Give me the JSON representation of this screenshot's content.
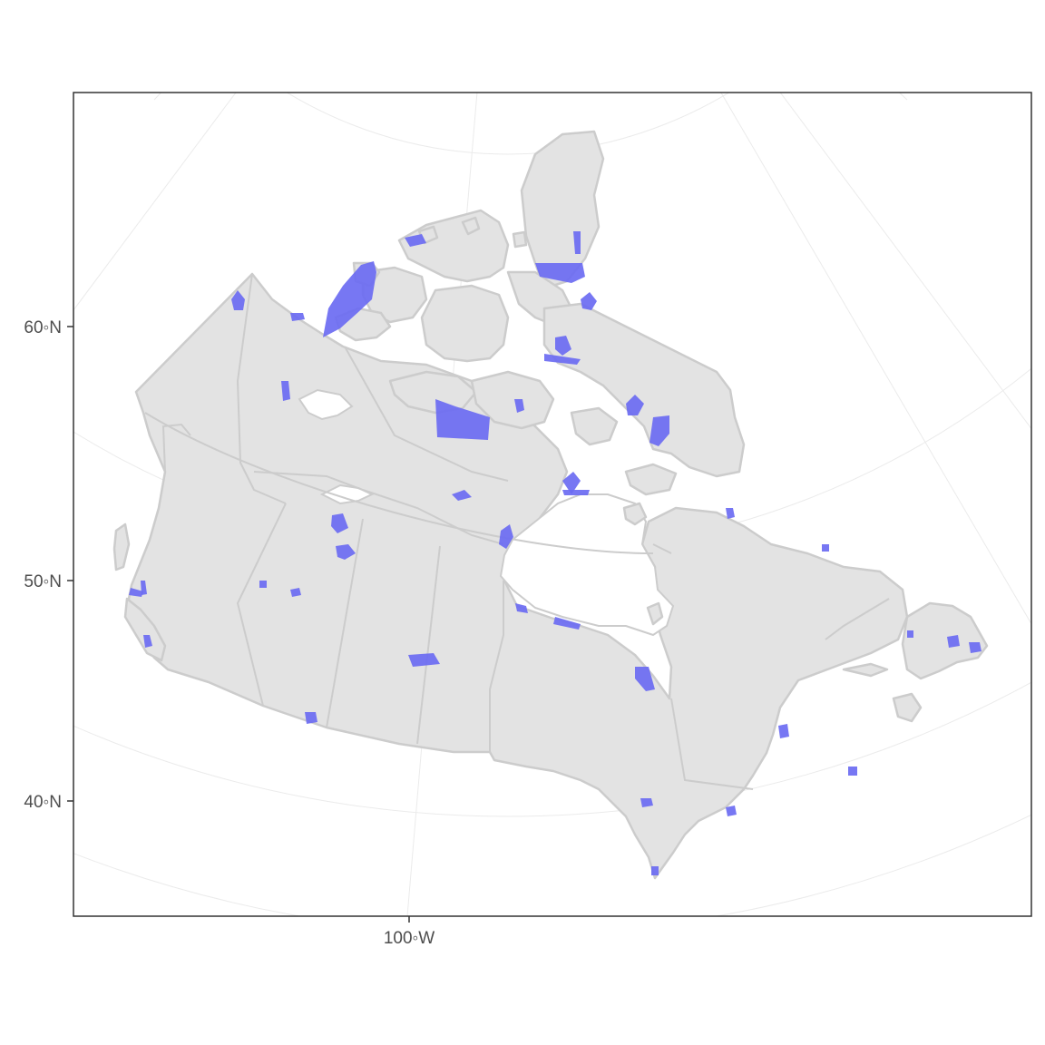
{
  "map": {
    "axis": {
      "y_ticks": [
        "60◦N",
        "50◦N",
        "40◦N"
      ],
      "x_ticks": [
        "100◦W"
      ]
    },
    "colors": {
      "land": "#e3e3e3",
      "boundary": "#cccccc",
      "protected_area": "#6b6bf2",
      "graticule": "#ebebeb",
      "panel_border": "#333333"
    },
    "grid": true,
    "layers": [
      "land",
      "provincial-boundaries",
      "protected-areas",
      "graticule"
    ]
  }
}
